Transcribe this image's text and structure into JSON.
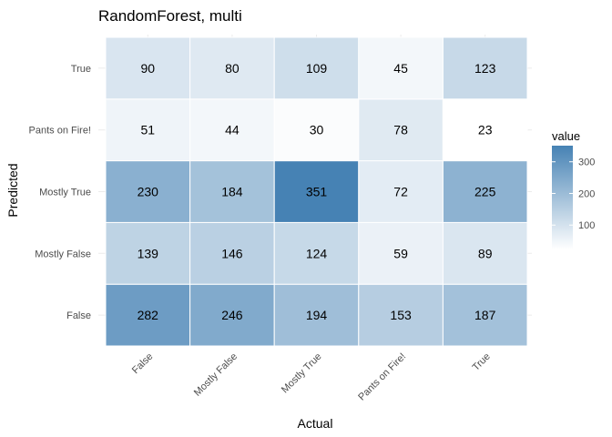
{
  "chart_data": {
    "type": "heatmap",
    "title": "RandomForest, multi",
    "xlabel": "Actual",
    "ylabel": "Predicted",
    "x_categories": [
      "False",
      "Mostly False",
      "Mostly True",
      "Pants on Fire!",
      "True"
    ],
    "y_categories": [
      "False",
      "Mostly False",
      "Mostly True",
      "Pants on Fire!",
      "True"
    ],
    "values": [
      [
        282,
        246,
        194,
        153,
        187
      ],
      [
        139,
        146,
        124,
        59,
        89
      ],
      [
        230,
        184,
        351,
        72,
        225
      ],
      [
        51,
        44,
        30,
        78,
        23
      ],
      [
        90,
        80,
        109,
        45,
        123
      ]
    ],
    "legend": {
      "title": "value",
      "ticks": [
        100,
        200,
        300
      ],
      "range": [
        23,
        351
      ],
      "placement": "right"
    },
    "colors": {
      "low": "#ffffff",
      "high": "#4682b4"
    },
    "grid": true
  }
}
